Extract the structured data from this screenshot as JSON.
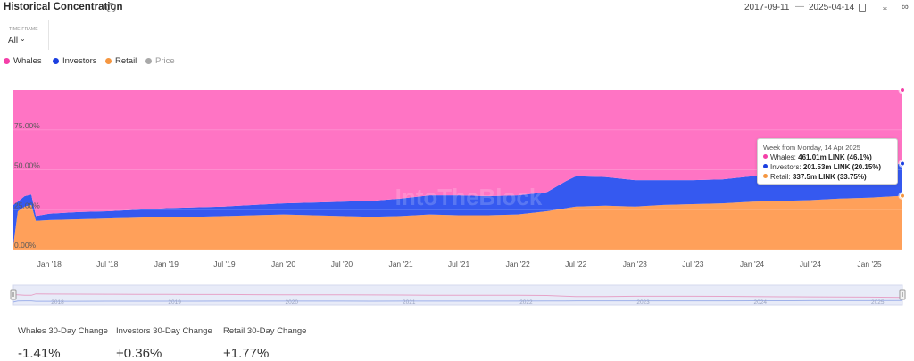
{
  "header": {
    "title": "Historical Concentration",
    "date_start": "2017-09-11",
    "date_end": "2025-04-14"
  },
  "timeframe": {
    "label": "TIME FRAME",
    "value": "All"
  },
  "legend": [
    {
      "label": "Whales",
      "color": "#f43fa8"
    },
    {
      "label": "Investors",
      "color": "#1b3fe0"
    },
    {
      "label": "Retail",
      "color": "#f59640"
    },
    {
      "label": "Price",
      "color": "#a9a9a9"
    }
  ],
  "tooltip": {
    "header": "Week from Monday, 14 Apr 2025",
    "rows": [
      {
        "name": "Whales:",
        "value": "461.01m LINK (46.1%)",
        "color": "#f43fa8"
      },
      {
        "name": "Investors:",
        "value": "201.53m LINK (20.15%)",
        "color": "#1b3fe0"
      },
      {
        "name": "Retail:",
        "value": "337.5m LINK (33.75%)",
        "color": "#f59640"
      }
    ]
  },
  "watermark": "IntoTheBlock",
  "stats": [
    {
      "label": "Whales 30-Day Change",
      "value": "-1.41%",
      "color": "#f27bbd"
    },
    {
      "label": "Investors 30-Day Change",
      "value": "+0.36%",
      "color": "#3a5fe0"
    },
    {
      "label": "Retail 30-Day Change",
      "value": "+1.77%",
      "color": "#f5a05a"
    }
  ],
  "chart_data": {
    "type": "area",
    "stacked": true,
    "x_unit": "date",
    "ylim": [
      0,
      100
    ],
    "y_ticks": [
      "0.00%",
      "25.00%",
      "50.00%",
      "75.00%"
    ],
    "x_ticks": [
      "Jan '18",
      "Jul '18",
      "Jan '19",
      "Jul '19",
      "Jan '20",
      "Jul '20",
      "Jan '21",
      "Jul '21",
      "Jan '22",
      "Jul '22",
      "Jan '23",
      "Jul '23",
      "Jan '24",
      "Jul '24",
      "Jan '25"
    ],
    "navigator_years": [
      "2018",
      "2019",
      "2020",
      "2021",
      "2022",
      "2023",
      "2024",
      "2025"
    ],
    "x": [
      "2017-09-11",
      "2017-09-25",
      "2017-10-16",
      "2017-11-06",
      "2017-11-20",
      "2018-01-01",
      "2018-04-01",
      "2018-07-01",
      "2018-10-01",
      "2019-01-01",
      "2019-04-01",
      "2019-07-01",
      "2019-10-01",
      "2020-01-01",
      "2020-04-01",
      "2020-07-01",
      "2020-10-01",
      "2021-01-01",
      "2021-04-01",
      "2021-07-01",
      "2021-10-01",
      "2022-01-01",
      "2022-04-01",
      "2022-06-01",
      "2022-07-01",
      "2022-10-01",
      "2023-01-01",
      "2023-04-01",
      "2023-07-01",
      "2023-10-01",
      "2024-01-01",
      "2024-04-01",
      "2024-07-01",
      "2024-10-01",
      "2025-01-01",
      "2025-04-14"
    ],
    "series": [
      {
        "name": "Retail",
        "color": "#f59640",
        "values": [
          3,
          24,
          27,
          28,
          18,
          18.5,
          19,
          19.5,
          20,
          20.5,
          20.5,
          21,
          21.5,
          22,
          21.5,
          21,
          20.5,
          21,
          22,
          21.5,
          21.5,
          22,
          24,
          26,
          27,
          27.5,
          27,
          28,
          28.5,
          29,
          30,
          30.5,
          31,
          32,
          32.5,
          33.75
        ]
      },
      {
        "name": "Investors",
        "color": "#1b3fe0",
        "values": [
          25,
          6,
          6.5,
          6.5,
          3,
          4,
          4.5,
          4.5,
          5,
          5.5,
          6,
          6,
          6.5,
          7,
          8,
          9,
          10,
          11,
          12,
          12.5,
          12,
          12,
          12,
          17,
          19,
          18,
          16.5,
          15.5,
          15,
          15,
          16,
          17.5,
          18.5,
          19,
          19.5,
          20.15
        ]
      },
      {
        "name": "Whales",
        "color": "#f43fa8",
        "values": [
          72,
          70,
          66.5,
          65.5,
          79,
          77.5,
          76.5,
          76,
          75,
          74,
          73.5,
          73,
          72,
          71,
          70.5,
          70,
          69.5,
          68,
          66,
          66,
          66.5,
          66,
          64,
          57,
          54,
          54.5,
          56.5,
          56.5,
          56.5,
          56,
          54,
          52,
          50.5,
          49,
          48,
          46.1
        ]
      }
    ]
  }
}
